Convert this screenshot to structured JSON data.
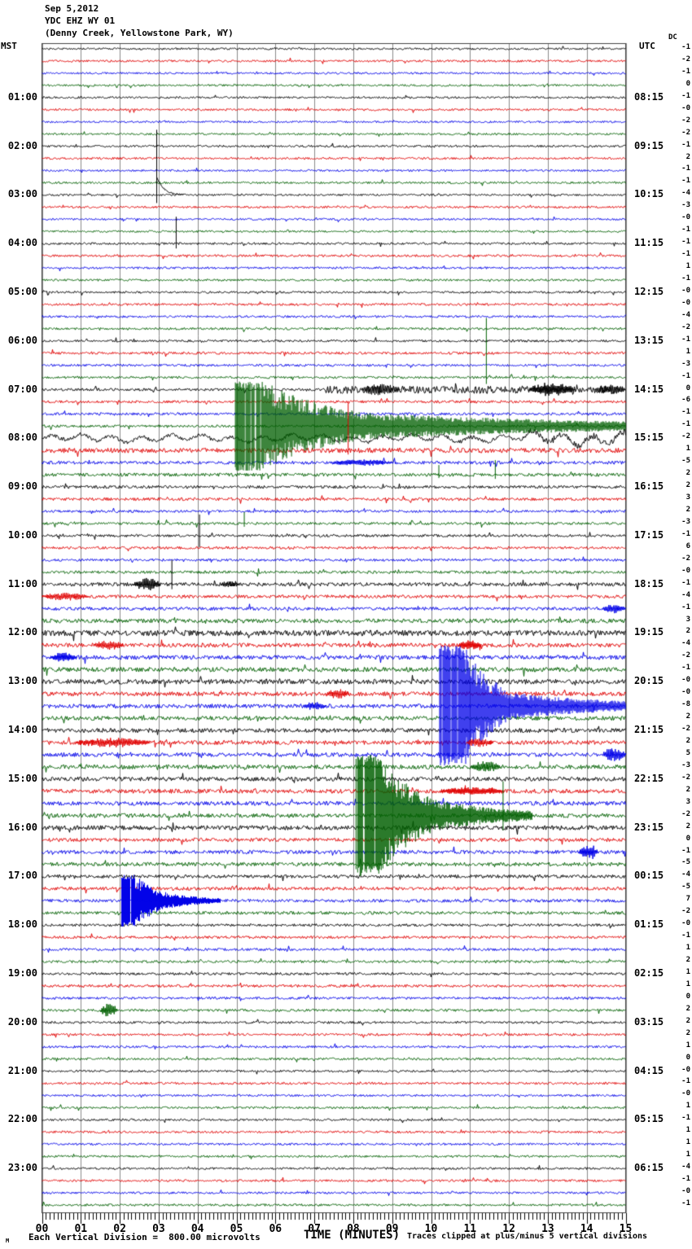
{
  "header": {
    "date": "Sep 5,2012",
    "station": "YDC EHZ WY 01",
    "location": "(Denny Creek, Yellowstone Park, WY)"
  },
  "axes": {
    "left_label": "MST",
    "right_label": "UTC",
    "dc_label": "DC",
    "x_title": "TIME (MINUTES)",
    "x_ticks": [
      "00",
      "01",
      "02",
      "03",
      "04",
      "05",
      "06",
      "07",
      "08",
      "09",
      "10",
      "11",
      "12",
      "13",
      "14",
      "15"
    ]
  },
  "footer": {
    "corner_glyph": "M",
    "scale_note": "Each Vertical Division =  800.00 microvolts",
    "clip_note": "Traces clipped at plus/minus 5 vertical divisions"
  },
  "left_time_labels": [
    "01:00",
    "02:00",
    "03:00",
    "04:00",
    "05:00",
    "06:00",
    "07:00",
    "08:00",
    "09:00",
    "10:00",
    "11:00",
    "12:00",
    "13:00",
    "14:00",
    "15:00",
    "16:00",
    "17:00",
    "18:00",
    "19:00",
    "20:00",
    "21:00",
    "22:00",
    "23:00"
  ],
  "right_time_labels": [
    "08:15",
    "09:15",
    "10:15",
    "11:15",
    "12:15",
    "13:15",
    "14:15",
    "15:15",
    "16:15",
    "17:15",
    "18:15",
    "19:15",
    "20:15",
    "21:15",
    "22:15",
    "23:15",
    "00:15",
    "01:15",
    "02:15",
    "03:15",
    "04:15",
    "05:15",
    "06:15"
  ],
  "chart_data": {
    "type": "line",
    "subtype": "helicorder-seismogram",
    "title": "YDC EHZ WY 01 (Denny Creek, Yellowstone Park, WY) Sep 5,2012",
    "xlabel": "TIME (MINUTES)",
    "x_range_minutes": [
      0,
      15
    ],
    "traces_per_hour": 4,
    "minutes_per_trace": 15,
    "num_traces": 96,
    "start_time_mst": "00:00",
    "timezone_left": "MST",
    "timezone_right": "UTC",
    "vertical_division_microvolts": 800.0,
    "clip_divisions": 5,
    "colors_cycle": [
      "#000000",
      "#e00000",
      "#0000e8",
      "#006000"
    ],
    "grid_color": "#8a8a8a",
    "frame_color": "#444444",
    "dc_offsets": [
      "-1",
      "-2",
      "-1",
      "0",
      "-1",
      "-0",
      "-2",
      "-2",
      "-1",
      "2",
      "-1",
      "-1",
      "-4",
      "-3",
      "-0",
      "-1",
      "-1",
      "-1",
      "1",
      "-1",
      "-0",
      "-0",
      "-4",
      "-2",
      "-1",
      "1",
      "-3",
      "-1",
      "0",
      "-6",
      "-1",
      "-1",
      "-2",
      "1",
      "-5",
      "2",
      "2",
      "3",
      "2",
      "-3",
      "-1",
      "6",
      "-2",
      "-0",
      "-1",
      "-4",
      "-1",
      "3",
      "2",
      "-4",
      "-2",
      "-1",
      "-0",
      "-0",
      "-8",
      "2",
      "-2",
      "2",
      "5",
      "-3",
      "-2",
      "2",
      "3",
      "-2",
      "2",
      "0",
      "-1",
      "-5",
      "-4",
      "-5",
      "7",
      "-2",
      "-0",
      "-1",
      "1",
      "2",
      "1",
      "1",
      "0",
      "2",
      "2",
      "2",
      "1",
      "0",
      "-0",
      "-1",
      "-0",
      "1",
      "-1",
      "1",
      "1",
      "1",
      "-4",
      "-1",
      "-0",
      "-1"
    ],
    "noise_amp": [
      1.2,
      1.3,
      1.2,
      1.2,
      1.2,
      1.3,
      1.2,
      1.2,
      1.3,
      1.3,
      1.2,
      1.3,
      1.2,
      1.3,
      1.2,
      1.2,
      1.3,
      1.4,
      1.3,
      1.3,
      1.3,
      1.4,
      1.3,
      1.4,
      1.4,
      1.5,
      1.4,
      1.4,
      1.6,
      1.6,
      1.6,
      1.6,
      3.6,
      3.0,
      2.0,
      2.0,
      1.8,
      1.8,
      1.6,
      1.6,
      1.6,
      1.6,
      1.6,
      1.7,
      2.2,
      2.0,
      2.0,
      2.6,
      3.4,
      2.6,
      2.6,
      2.8,
      3.0,
      2.6,
      2.6,
      2.6,
      2.6,
      2.6,
      2.6,
      2.6,
      2.6,
      2.6,
      2.5,
      2.5,
      2.8,
      2.3,
      2.3,
      2.3,
      2.0,
      2.0,
      1.9,
      1.9,
      1.6,
      1.6,
      1.6,
      1.6,
      1.5,
      1.6,
      1.5,
      1.5,
      1.4,
      1.4,
      1.4,
      1.4,
      1.3,
      1.4,
      1.3,
      1.3,
      1.3,
      1.4,
      1.3,
      1.3,
      1.3,
      1.4,
      1.3,
      1.4
    ],
    "wavy_traces": [
      32
    ],
    "events": [
      {
        "trace": 12,
        "type": "cal",
        "min": 2.95,
        "up": 80,
        "down": 10,
        "tail": 0.7,
        "tail_amp": 22
      },
      {
        "trace": 16,
        "type": "spike",
        "min": 3.45,
        "up": 33,
        "down": 6
      },
      {
        "trace": 27,
        "type": "spike",
        "min": 11.42,
        "up": 73,
        "down": 8
      },
      {
        "trace": 28,
        "type": "elevate",
        "from": 7.3,
        "to": 15,
        "amp": 3.2
      },
      {
        "trace": 28,
        "type": "burst",
        "from": 8.2,
        "to": 9.2,
        "amp": 7
      },
      {
        "trace": 28,
        "type": "burst",
        "from": 12.5,
        "to": 13.7,
        "amp": 9
      },
      {
        "trace": 28,
        "type": "burst",
        "from": 14.2,
        "to": 15,
        "amp": 6
      },
      {
        "trace": 31,
        "type": "quake",
        "onset": 4.95,
        "clip_to": 5.7,
        "clip_amp": 55,
        "decay_to": 8.4,
        "decay_amp": 16,
        "coda_to": 15,
        "coda_amp": 6
      },
      {
        "trace": 32,
        "type": "elevate",
        "from": 12.5,
        "to": 15,
        "amp": 3
      },
      {
        "trace": 33,
        "type": "spike",
        "min": 7.87,
        "up": 58,
        "down": 5
      },
      {
        "trace": 34,
        "type": "burst",
        "from": 7.4,
        "to": 9.0,
        "amp": 4
      },
      {
        "trace": 35,
        "type": "spike",
        "min": 10.2,
        "up": 12,
        "down": 4
      },
      {
        "trace": 35,
        "type": "spike",
        "min": 11.65,
        "up": 18,
        "down": 5
      },
      {
        "trace": 39,
        "type": "spike",
        "min": 5.2,
        "up": 14,
        "down": 4
      },
      {
        "trace": 40,
        "type": "spike",
        "min": 4.05,
        "up": 26,
        "down": 14
      },
      {
        "trace": 44,
        "type": "burst",
        "from": 2.35,
        "to": 3.05,
        "amp": 8
      },
      {
        "trace": 44,
        "type": "spike",
        "min": 3.34,
        "up": 30,
        "down": 6
      },
      {
        "trace": 44,
        "type": "burst",
        "from": 4.6,
        "to": 5.1,
        "amp": 5
      },
      {
        "trace": 45,
        "type": "burst",
        "from": 0,
        "to": 1.2,
        "amp": 5
      },
      {
        "trace": 46,
        "type": "burst",
        "from": 14.4,
        "to": 15,
        "amp": 6
      },
      {
        "trace": 49,
        "type": "burst",
        "from": 1.3,
        "to": 2.1,
        "amp": 6
      },
      {
        "trace": 49,
        "type": "burst",
        "from": 10.7,
        "to": 11.3,
        "amp": 7
      },
      {
        "trace": 50,
        "type": "burst",
        "from": 0.2,
        "to": 0.9,
        "amp": 6
      },
      {
        "trace": 53,
        "type": "burst",
        "from": 7.3,
        "to": 7.9,
        "amp": 6
      },
      {
        "trace": 54,
        "type": "burst",
        "from": 6.7,
        "to": 7.3,
        "amp": 5
      },
      {
        "trace": 54,
        "type": "quake",
        "onset": 10.22,
        "clip_to": 10.85,
        "clip_amp": 75,
        "decay_to": 12.2,
        "decay_amp": 16,
        "coda_to": 15,
        "coda_amp": 6
      },
      {
        "trace": 57,
        "type": "burst",
        "from": 0.8,
        "to": 2.8,
        "amp": 6
      },
      {
        "trace": 57,
        "type": "burst",
        "from": 10.9,
        "to": 11.6,
        "amp": 6
      },
      {
        "trace": 58,
        "type": "burst",
        "from": 14.4,
        "to": 15,
        "amp": 9
      },
      {
        "trace": 59,
        "type": "burst",
        "from": 11.0,
        "to": 11.8,
        "amp": 7
      },
      {
        "trace": 61,
        "type": "burst",
        "from": 10.2,
        "to": 11.9,
        "amp": 5
      },
      {
        "trace": 63,
        "type": "quake",
        "onset": 8.05,
        "clip_to": 8.7,
        "clip_amp": 75,
        "decay_to": 10.2,
        "decay_amp": 18,
        "coda_to": 12.6,
        "coda_amp": 6
      },
      {
        "trace": 63,
        "type": "spike",
        "min": 11.85,
        "up": 42,
        "down": 18
      },
      {
        "trace": 66,
        "type": "burst",
        "from": 13.8,
        "to": 14.3,
        "amp": 10
      },
      {
        "trace": 70,
        "type": "quake",
        "onset": 2.05,
        "clip_to": 2.4,
        "clip_amp": 32,
        "decay_to": 3.3,
        "decay_amp": 9,
        "coda_to": 4.6,
        "coda_amp": 3
      },
      {
        "trace": 79,
        "type": "burst",
        "from": 1.5,
        "to": 1.95,
        "amp": 9
      }
    ]
  }
}
